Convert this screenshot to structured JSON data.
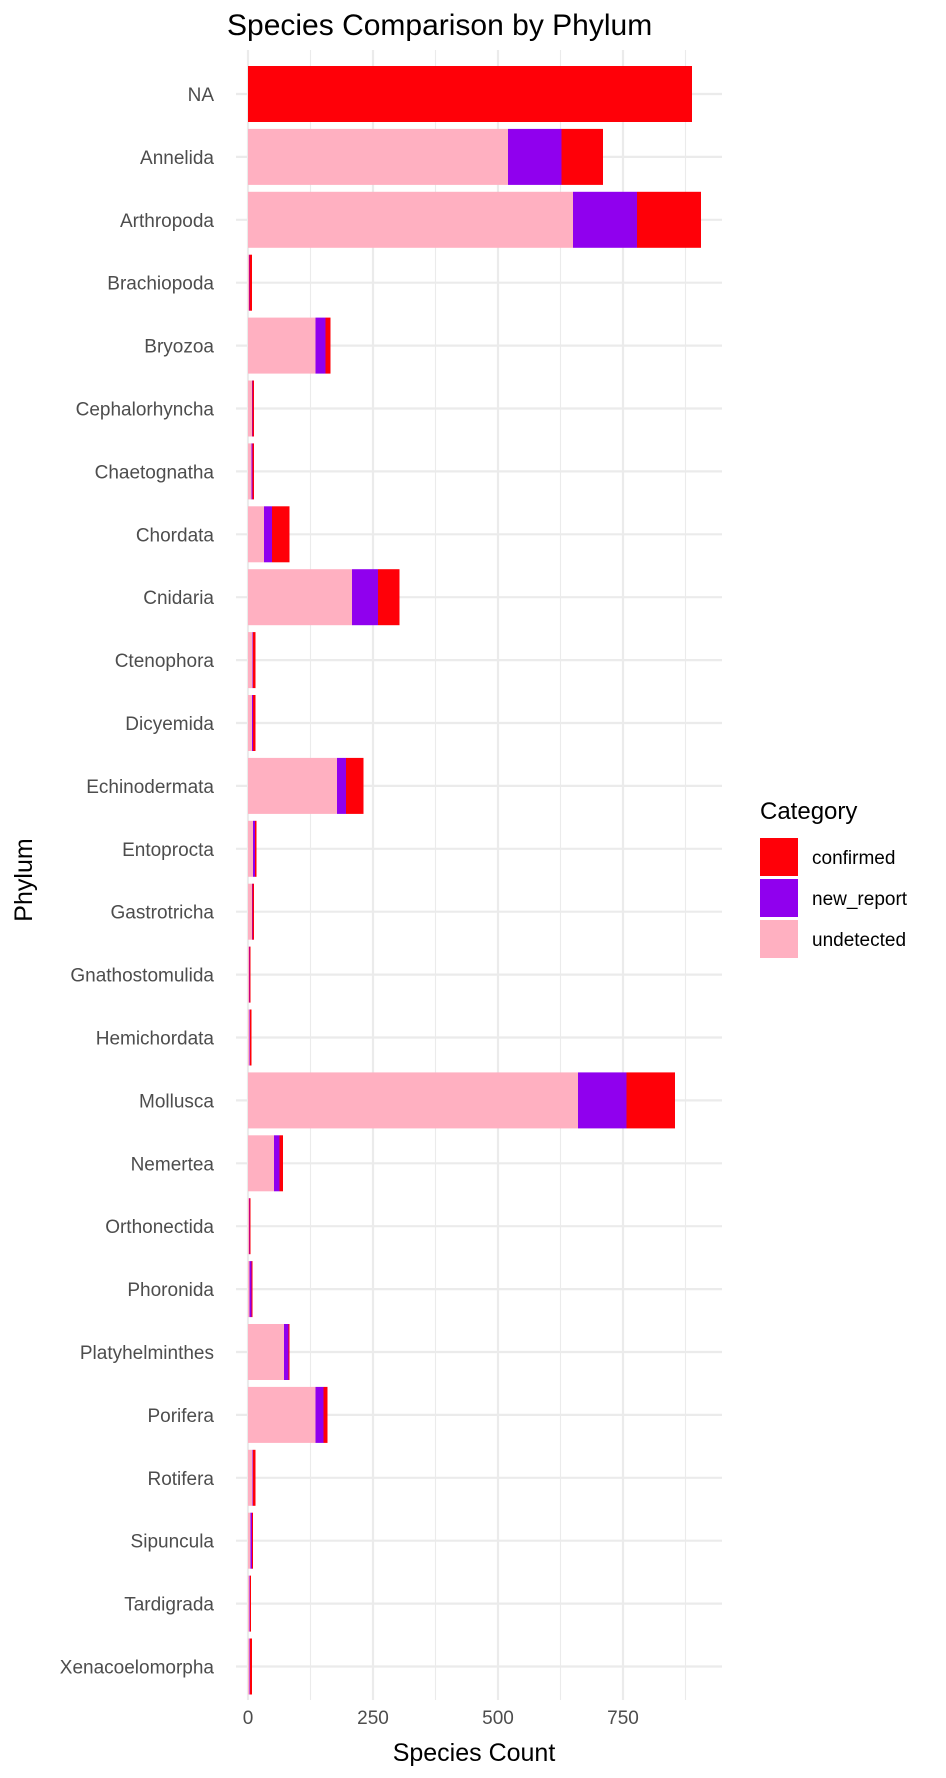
{
  "chart_data": {
    "type": "bar",
    "orientation": "horizontal",
    "stacked": true,
    "title": "Species Comparison by Phylum",
    "xlabel": "Species Count",
    "ylabel": "Phylum",
    "xlim": [
      0,
      950
    ],
    "x_ticks": [
      0,
      250,
      500,
      750
    ],
    "grid": true,
    "legend": {
      "title": "Category",
      "position": "right"
    },
    "categories": [
      "NA",
      "Annelida",
      "Arthropoda",
      "Brachiopoda",
      "Bryozoa",
      "Cephalorhyncha",
      "Chaetognatha",
      "Chordata",
      "Cnidaria",
      "Ctenophora",
      "Dicyemida",
      "Echinodermata",
      "Entoprocta",
      "Gastrotricha",
      "Gnathostomulida",
      "Hemichordata",
      "Mollusca",
      "Nemertea",
      "Orthonectida",
      "Phoronida",
      "Platyhelminthes",
      "Porifera",
      "Rotifera",
      "Sipuncula",
      "Tardigrada",
      "Xenacoelomorpha"
    ],
    "series": [
      {
        "name": "undetected",
        "color": "#ffb0c1",
        "values": [
          0,
          520,
          650,
          2,
          135,
          8,
          7,
          32,
          208,
          9,
          8,
          178,
          10,
          8,
          2,
          3,
          660,
          52,
          2,
          3,
          72,
          135,
          9,
          5,
          3,
          3
        ]
      },
      {
        "name": "new_report",
        "color": "#9000ee",
        "values": [
          0,
          107,
          128,
          1,
          20,
          1,
          2,
          16,
          52,
          1,
          2,
          18,
          4,
          1,
          1,
          1,
          97,
          11,
          1,
          4,
          9,
          16,
          1,
          3,
          1,
          1
        ]
      },
      {
        "name": "confirmed",
        "color": "#ff0008",
        "values": [
          888,
          83,
          128,
          5,
          10,
          3,
          3,
          35,
          43,
          5,
          5,
          35,
          3,
          3,
          2,
          3,
          97,
          7,
          2,
          2,
          2,
          8,
          5,
          2,
          2,
          4
        ]
      }
    ]
  }
}
